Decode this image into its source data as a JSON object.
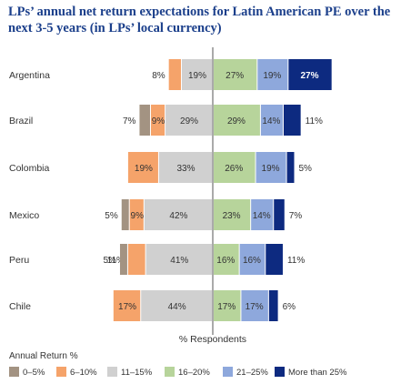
{
  "chart_data": {
    "type": "bar",
    "title": "LPs’ annual net return expectations for Latin American PE over the next 3-5 years (in LPs’ local currency)",
    "xlabel": "% Respondents",
    "categories": [
      "Argentina",
      "Brazil",
      "Colombia",
      "Mexico",
      "Peru",
      "Chile"
    ],
    "legend_title": "Annual Return %",
    "legend_position": "bottom",
    "series": [
      {
        "name": "0–5%",
        "color": "#a39382",
        "values": [
          0,
          7,
          0,
          5,
          5,
          0
        ],
        "labels": [
          "",
          "7%",
          "",
          "5%",
          "5%",
          ""
        ]
      },
      {
        "name": "6–10%",
        "color": "#f5a36a",
        "values": [
          8,
          9,
          19,
          9,
          11,
          17
        ],
        "labels": [
          "8%",
          "9%",
          "19%",
          "9%",
          "11%",
          "17%"
        ]
      },
      {
        "name": "11–15%",
        "color": "#d0d0d0",
        "values": [
          19,
          29,
          33,
          42,
          41,
          44
        ],
        "labels": [
          "19%",
          "29%",
          "33%",
          "42%",
          "41%",
          "44%"
        ]
      },
      {
        "name": "16–20%",
        "color": "#b7d49b",
        "values": [
          27,
          29,
          26,
          23,
          16,
          17
        ],
        "labels": [
          "27%",
          "29%",
          "26%",
          "23%",
          "16%",
          "17%"
        ]
      },
      {
        "name": "21–25%",
        "color": "#8ea8dc",
        "values": [
          19,
          14,
          19,
          14,
          16,
          17
        ],
        "labels": [
          "19%",
          "14%",
          "19%",
          "14%",
          "16%",
          "17%"
        ]
      },
      {
        "name": "More than 25%",
        "color": "#0d2a80",
        "values": [
          27,
          11,
          5,
          7,
          11,
          6
        ],
        "labels": [
          "27%",
          "11%",
          "5%",
          "7%",
          "11%",
          "6%"
        ]
      }
    ],
    "diverging_split": "between 11–15% and 16–20%"
  }
}
